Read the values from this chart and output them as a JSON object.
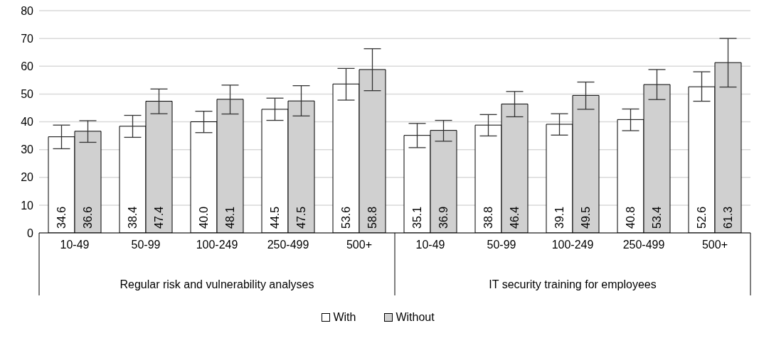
{
  "chart_data": {
    "type": "bar",
    "categories": [
      "10-49",
      "50-99",
      "100-249",
      "250-499",
      "500+",
      "10-49",
      "50-99",
      "100-249",
      "250-499",
      "500+"
    ],
    "annotations": [
      "Regular risk and vulnerability analyses",
      "IT security training for employees"
    ],
    "series": [
      {
        "name": "With",
        "color": "#ffffff",
        "values": [
          34.6,
          38.4,
          40.0,
          44.5,
          53.6,
          35.1,
          38.8,
          39.1,
          40.8,
          52.6
        ],
        "value_labels": [
          "34.6",
          "38.4",
          "40.0",
          "44.5",
          "53.6",
          "35.1",
          "38.8",
          "39.1",
          "40.8",
          "52.6"
        ],
        "errors": [
          [
            30.3,
            38.8
          ],
          [
            34.4,
            42.3
          ],
          [
            36.1,
            43.8
          ],
          [
            40.5,
            48.5
          ],
          [
            47.8,
            59.2
          ],
          [
            30.7,
            39.4
          ],
          [
            34.9,
            42.6
          ],
          [
            35.2,
            42.9
          ],
          [
            36.8,
            44.6
          ],
          [
            47.4,
            58.0
          ]
        ]
      },
      {
        "name": "Without",
        "color": "#d0d0d0",
        "values": [
          36.6,
          47.4,
          48.1,
          47.5,
          58.8,
          36.9,
          46.4,
          49.5,
          53.4,
          61.3
        ],
        "value_labels": [
          "36.6",
          "47.4",
          "48.1",
          "47.5",
          "58.8",
          "36.9",
          "46.4",
          "49.5",
          "53.4",
          "61.3"
        ],
        "errors": [
          [
            32.6,
            40.4
          ],
          [
            42.9,
            51.8
          ],
          [
            42.8,
            53.2
          ],
          [
            42.1,
            53.0
          ],
          [
            51.2,
            66.3
          ],
          [
            33.0,
            40.5
          ],
          [
            41.8,
            50.9
          ],
          [
            44.5,
            54.3
          ],
          [
            48.0,
            58.8
          ],
          [
            52.5,
            70.0
          ]
        ]
      }
    ],
    "ylim": [
      0,
      80
    ],
    "yticks": [
      0,
      10,
      20,
      30,
      40,
      50,
      60,
      70,
      80
    ],
    "grid": "y",
    "legend": "bottom"
  }
}
